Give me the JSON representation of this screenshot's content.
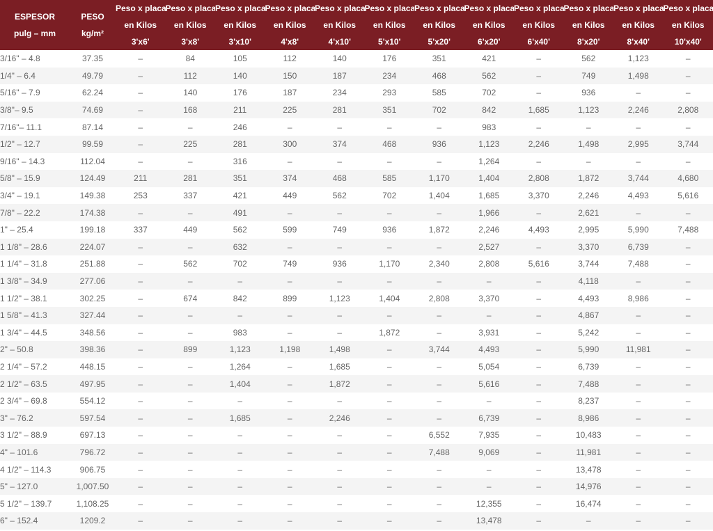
{
  "table": {
    "header": [
      [
        "ESPESOR",
        "pulg – mm"
      ],
      [
        "PESO",
        "kg/m²"
      ],
      [
        "Peso x placa",
        "en Kilos",
        "3'x6'"
      ],
      [
        "Peso x placa",
        "en Kilos",
        "3'x8'"
      ],
      [
        "Peso x placa",
        "en Kilos",
        "3'x10'"
      ],
      [
        "Peso x placa",
        "en Kilos",
        "4'x8'"
      ],
      [
        "Peso x placa",
        "en Kilos",
        "4'x10'"
      ],
      [
        "Peso x placa",
        "en Kilos",
        "5'x10'"
      ],
      [
        "Peso x placa",
        "en Kilos",
        "5'x20'"
      ],
      [
        "Peso x placa",
        "en Kilos",
        "6'x20'"
      ],
      [
        "Peso x placa",
        "en Kilos",
        "6'x40'"
      ],
      [
        "Peso x placa",
        "en Kilos",
        "8'x20'"
      ],
      [
        "Peso x placa",
        "en Kilos",
        "8'x40'"
      ],
      [
        "Peso x placa",
        "en Kilos",
        "10'x40'"
      ]
    ],
    "rows": [
      [
        "3/16\" – 4.8",
        "37.35",
        "–",
        "84",
        "105",
        "112",
        "140",
        "176",
        "351",
        "421",
        "–",
        "562",
        "1,123",
        "–"
      ],
      [
        "1/4\" – 6.4",
        "49.79",
        "–",
        "112",
        "140",
        "150",
        "187",
        "234",
        "468",
        "562",
        "–",
        "749",
        "1,498",
        "–"
      ],
      [
        "5/16\" – 7.9",
        "62.24",
        "–",
        "140",
        "176",
        "187",
        "234",
        "293",
        "585",
        "702",
        "–",
        "936",
        "–",
        "–"
      ],
      [
        "3/8\"– 9.5",
        "74.69",
        "–",
        "168",
        "211",
        "225",
        "281",
        "351",
        "702",
        "842",
        "1,685",
        "1,123",
        "2,246",
        "2,808"
      ],
      [
        "7/16\"– 11.1",
        "87.14",
        "–",
        "–",
        "246",
        "–",
        "–",
        "–",
        "–",
        "983",
        "–",
        "–",
        "–",
        "–"
      ],
      [
        "1/2\" – 12.7",
        "99.59",
        "–",
        "225",
        "281",
        "300",
        "374",
        "468",
        "936",
        "1,123",
        "2,246",
        "1,498",
        "2,995",
        "3,744"
      ],
      [
        "9/16\" – 14.3",
        "112.04",
        "–",
        "–",
        "316",
        "–",
        "–",
        "–",
        "–",
        "1,264",
        "–",
        "–",
        "–",
        "–"
      ],
      [
        "5/8\" – 15.9",
        "124.49",
        "211",
        "281",
        "351",
        "374",
        "468",
        "585",
        "1,170",
        "1,404",
        "2,808",
        "1,872",
        "3,744",
        "4,680"
      ],
      [
        "3/4\" – 19.1",
        "149.38",
        "253",
        "337",
        "421",
        "449",
        "562",
        "702",
        "1,404",
        "1,685",
        "3,370",
        "2,246",
        "4,493",
        "5,616"
      ],
      [
        "7/8\" – 22.2",
        "174.38",
        "–",
        "–",
        "491",
        "–",
        "–",
        "–",
        "–",
        "1,966",
        "–",
        "2,621",
        "–",
        "–"
      ],
      [
        "1\" – 25.4",
        "199.18",
        "337",
        "449",
        "562",
        "599",
        "749",
        "936",
        "1,872",
        "2,246",
        "4,493",
        "2,995",
        "5,990",
        "7,488"
      ],
      [
        "1 1/8\" – 28.6",
        "224.07",
        "–",
        "–",
        "632",
        "–",
        "–",
        "–",
        "–",
        "2,527",
        "–",
        "3,370",
        "6,739",
        "–"
      ],
      [
        "1 1/4\" – 31.8",
        "251.88",
        "–",
        "562",
        "702",
        "749",
        "936",
        "1,170",
        "2,340",
        "2,808",
        "5,616",
        "3,744",
        "7,488",
        "–"
      ],
      [
        "1 3/8\" – 34.9",
        "277.06",
        "–",
        "–",
        "–",
        "–",
        "–",
        "–",
        "–",
        "–",
        "–",
        "4,118",
        "–",
        "–"
      ],
      [
        "1 1/2\" – 38.1",
        "302.25",
        "–",
        "674",
        "842",
        "899",
        "1,123",
        "1,404",
        "2,808",
        "3,370",
        "–",
        "4,493",
        "8,986",
        "–"
      ],
      [
        "1 5/8\" – 41.3",
        "327.44",
        "–",
        "–",
        "–",
        "–",
        "–",
        "–",
        "–",
        "–",
        "–",
        "4,867",
        "–",
        "–"
      ],
      [
        "1 3/4\" – 44.5",
        "348.56",
        "–",
        "–",
        "983",
        "–",
        "–",
        "1,872",
        "–",
        "3,931",
        "–",
        "5,242",
        "–",
        "–"
      ],
      [
        "2\" – 50.8",
        "398.36",
        "–",
        "899",
        "1,123",
        "1,198",
        "1,498",
        "–",
        "3,744",
        "4,493",
        "–",
        "5,990",
        "11,981",
        "–"
      ],
      [
        "2 1/4\" – 57.2",
        "448.15",
        "–",
        "–",
        "1,264",
        "–",
        "1,685",
        "–",
        "–",
        "5,054",
        "–",
        "6,739",
        "–",
        "–"
      ],
      [
        "2 1/2\" – 63.5",
        "497.95",
        "–",
        "–",
        "1,404",
        "–",
        "1,872",
        "–",
        "–",
        "5,616",
        "–",
        "7,488",
        "–",
        "–"
      ],
      [
        "2 3/4\" – 69.8",
        "554.12",
        "–",
        "–",
        "–",
        "–",
        "–",
        "–",
        "–",
        "–",
        "–",
        "8,237",
        "–",
        "–"
      ],
      [
        "3\" – 76.2",
        "597.54",
        "–",
        "–",
        "1,685",
        "–",
        "2,246",
        "–",
        "–",
        "6,739",
        "–",
        "8,986",
        "–",
        "–"
      ],
      [
        "3 1/2\" – 88.9",
        "697.13",
        "–",
        "–",
        "–",
        "–",
        "–",
        "–",
        "6,552",
        "7,935",
        "–",
        "10,483",
        "–",
        "–"
      ],
      [
        "4\" – 101.6",
        "796.72",
        "–",
        "–",
        "–",
        "–",
        "–",
        "–",
        "7,488",
        "9,069",
        "–",
        "11,981",
        "–",
        "–"
      ],
      [
        "4 1/2\" – 114.3",
        "906.75",
        "–",
        "–",
        "–",
        "–",
        "–",
        "–",
        "–",
        "–",
        "–",
        "13,478",
        "–",
        "–"
      ],
      [
        "5\" – 127.0",
        "1,007.50",
        "–",
        "–",
        "–",
        "–",
        "–",
        "–",
        "–",
        "–",
        "–",
        "14,976",
        "–",
        "–"
      ],
      [
        "5 1/2\" – 139.7",
        "1,108.25",
        "–",
        "–",
        "–",
        "–",
        "–",
        "–",
        "–",
        "12,355",
        "–",
        "16,474",
        "–",
        "–"
      ],
      [
        "6\" – 152.4",
        "1209.2",
        "–",
        "–",
        "–",
        "–",
        "–",
        "–",
        "–",
        "13,478",
        "–",
        "–",
        "–",
        "–"
      ]
    ]
  }
}
